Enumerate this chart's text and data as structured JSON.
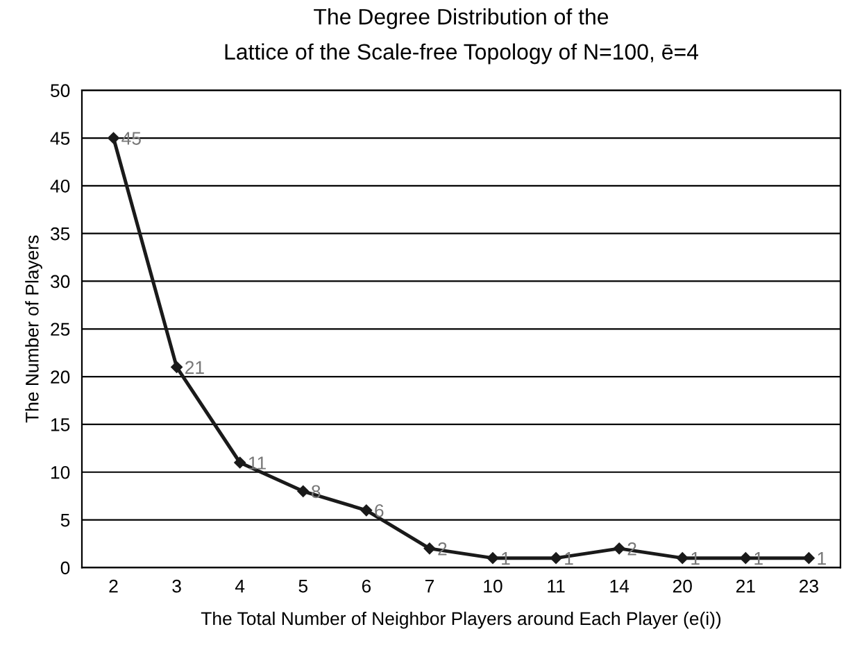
{
  "chart_data": {
    "type": "line",
    "title": "The Degree Distribution of the\nLattice of the Scale-free Topology of N=100, ē=4",
    "xlabel": "The Total Number of Neighbor Players around Each Player (e(i))",
    "ylabel": "The Number of Players",
    "categories": [
      "2",
      "3",
      "4",
      "5",
      "6",
      "7",
      "10",
      "11",
      "14",
      "20",
      "21",
      "23"
    ],
    "series": [
      {
        "color": "#1a1a1a",
        "values": [
          45,
          21,
          11,
          8,
          6,
          2,
          1,
          1,
          2,
          1,
          1,
          1
        ]
      }
    ],
    "ylim": [
      0,
      50
    ],
    "yticks": [
      0,
      5,
      10,
      15,
      20,
      25,
      30,
      35,
      40,
      45,
      50
    ],
    "grid": "y",
    "marker": "diamond",
    "line_style": "solid",
    "data_labels": true
  }
}
